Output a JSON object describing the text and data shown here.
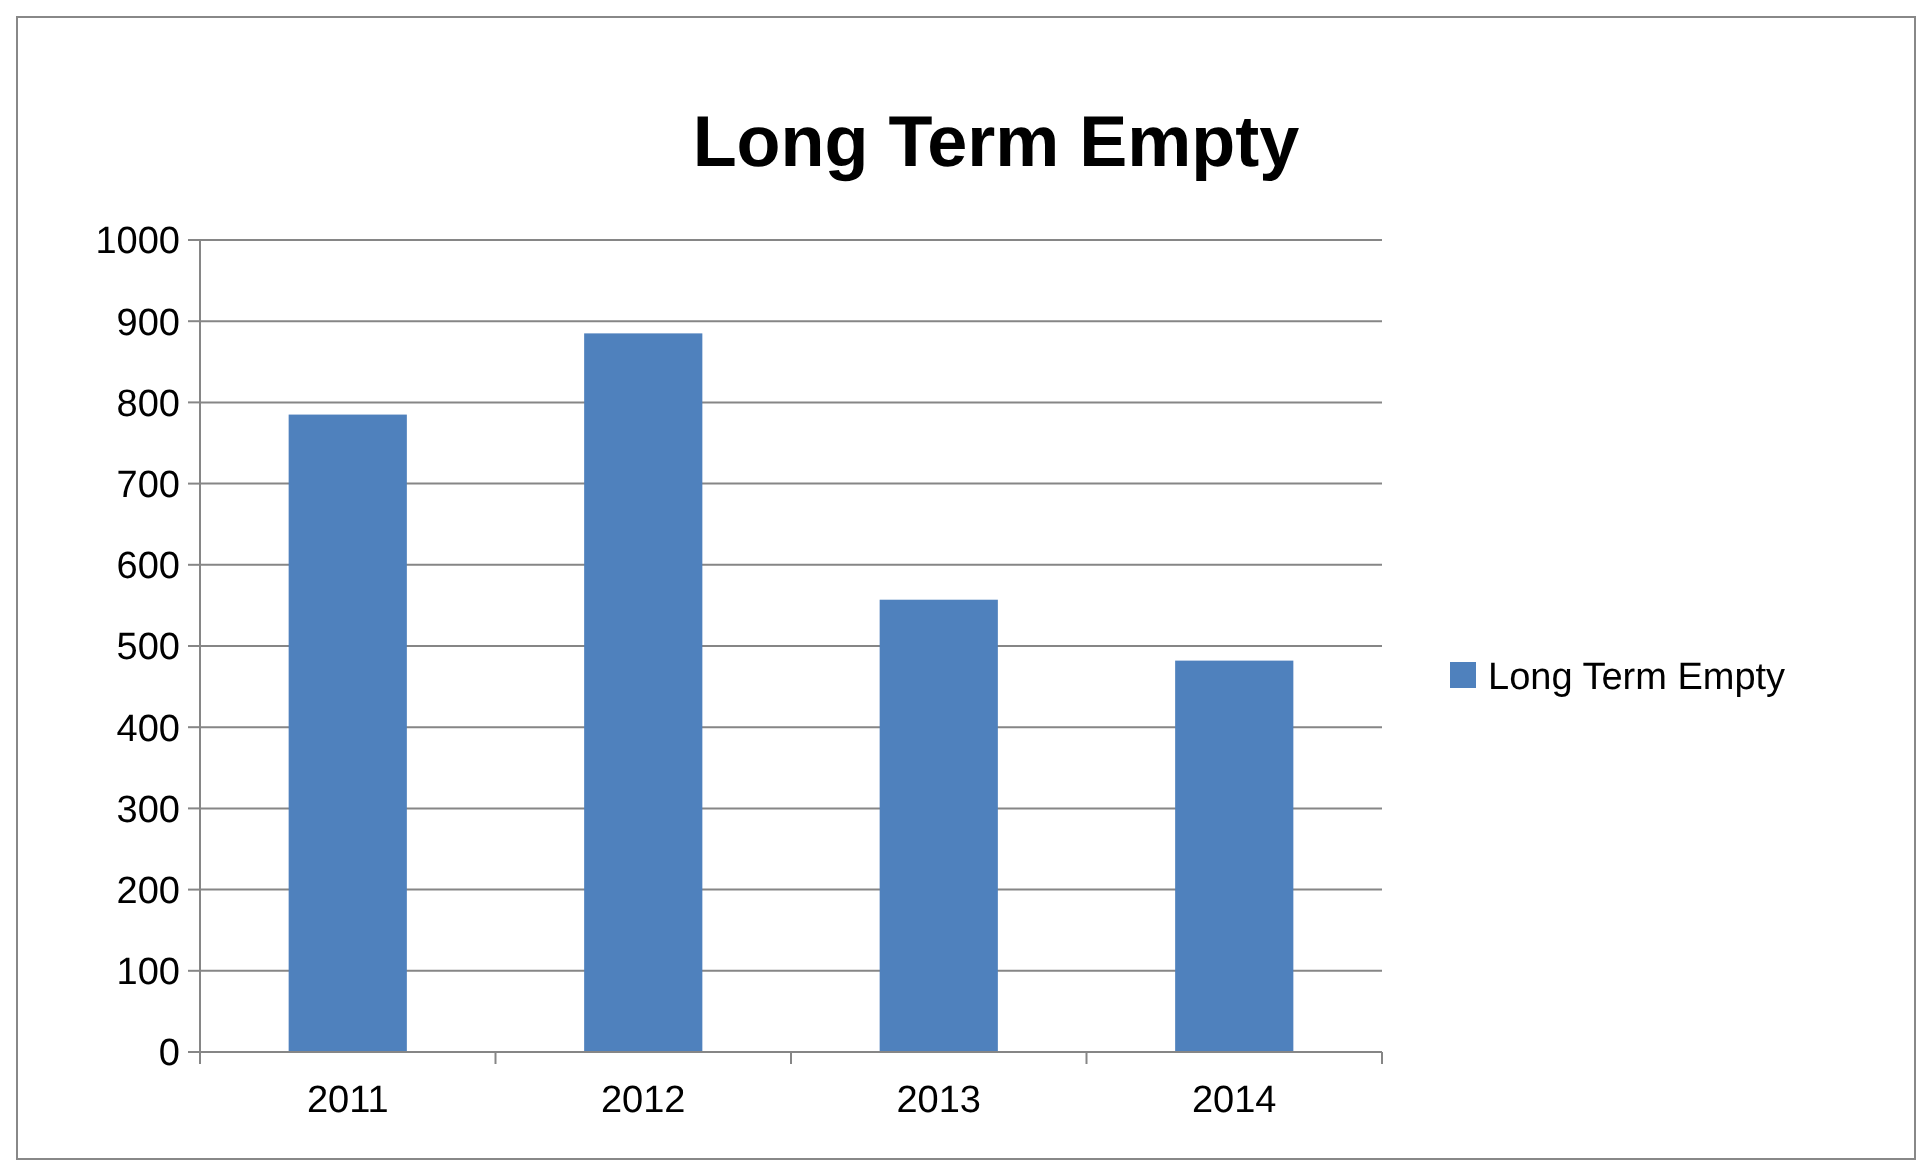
{
  "chart_data": {
    "type": "bar",
    "title": "Long Term Empty",
    "categories": [
      "2011",
      "2012",
      "2013",
      "2014"
    ],
    "series": [
      {
        "name": "Long Term Empty",
        "color": "#4f81bd",
        "values": [
          785,
          885,
          557,
          482
        ]
      }
    ],
    "ylim": [
      0,
      1000
    ],
    "yticks": [
      0,
      100,
      200,
      300,
      400,
      500,
      600,
      700,
      800,
      900,
      1000
    ],
    "grid": "y",
    "legend": "right"
  }
}
